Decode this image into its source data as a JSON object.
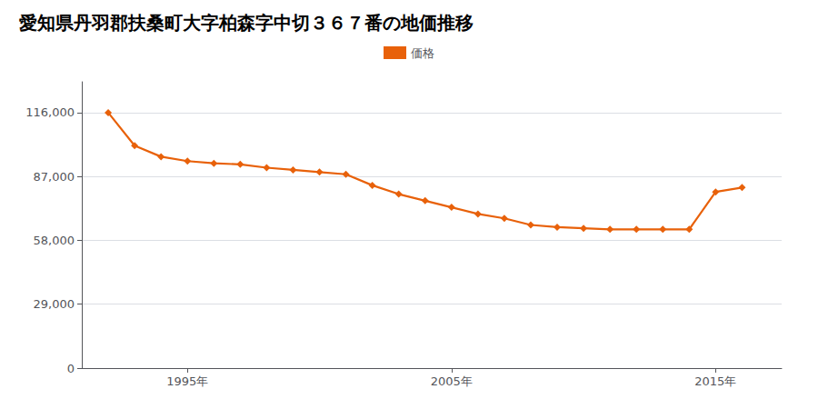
{
  "chart_data": {
    "type": "line",
    "title": "愛知県丹羽郡扶桑町大字柏森字中切３６７番の地価推移",
    "x": [
      1992,
      1993,
      1994,
      1995,
      1996,
      1997,
      1998,
      1999,
      2000,
      2001,
      2002,
      2003,
      2004,
      2005,
      2006,
      2007,
      2008,
      2009,
      2010,
      2011,
      2012,
      2013,
      2014,
      2015,
      2016
    ],
    "series": [
      {
        "name": "価格",
        "color": "#E8610A",
        "marker": "diamond",
        "values": [
          116000,
          101000,
          96000,
          94000,
          93000,
          92500,
          91000,
          90000,
          89000,
          88000,
          83000,
          79000,
          76000,
          73000,
          70000,
          68000,
          65000,
          64000,
          63500,
          63000,
          63000,
          63000,
          63000,
          80000,
          82000
        ]
      }
    ],
    "xlim": [
      1991.0,
      2017.5
    ],
    "xticks": [
      {
        "value": 1995,
        "label": "1995年"
      },
      {
        "value": 2005,
        "label": "2005年"
      },
      {
        "value": 2015,
        "label": "2015年"
      }
    ],
    "ylim": [
      0,
      130000
    ],
    "yticks": [
      0,
      {
        "value": 29000,
        "label": "29,000"
      },
      {
        "value": 58000,
        "label": "58,000"
      },
      {
        "value": 87000,
        "label": "87,000"
      },
      {
        "value": 116000,
        "label": "116,000"
      }
    ],
    "grid": true,
    "legend": "top"
  }
}
